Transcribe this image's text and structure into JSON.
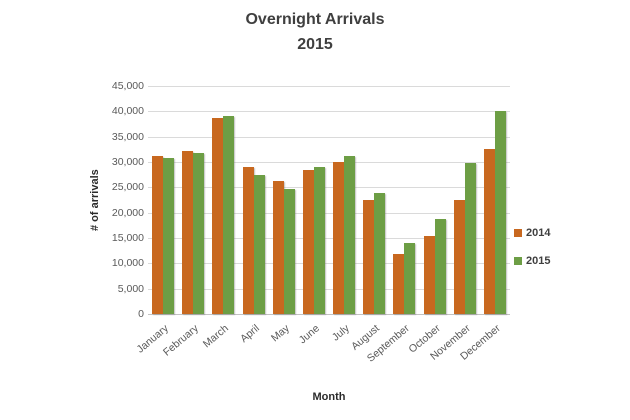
{
  "chart_data": {
    "type": "bar",
    "title": "Overnight Arrivals",
    "subtitle": "2015",
    "xlabel": "Month",
    "ylabel": "# of arrivals",
    "categories": [
      "January",
      "February",
      "March",
      "April",
      "May",
      "June",
      "July",
      "August",
      "September",
      "October",
      "November",
      "December"
    ],
    "series": [
      {
        "name": "2014",
        "color": "#C8681F",
        "values": [
          31200,
          32200,
          38600,
          29000,
          26200,
          28500,
          30100,
          22500,
          11900,
          15400,
          22600,
          32600
        ]
      },
      {
        "name": "2015",
        "color": "#6D9E45",
        "values": [
          30800,
          31700,
          39100,
          27500,
          24700,
          29100,
          31100,
          23800,
          14000,
          18700,
          29900,
          40000
        ]
      }
    ],
    "ylim": [
      0,
      45000
    ],
    "ytick_step": 5000,
    "ytick_labels": [
      "0",
      "5,000",
      "10,000",
      "15,000",
      "20,000",
      "25,000",
      "30,000",
      "35,000",
      "40,000",
      "45,000"
    ],
    "grid": true,
    "legend_position": "right",
    "colors": {
      "gridline": "#DADADA",
      "axis_line": "#C3C3C3",
      "tick_text": "#595959",
      "title_text": "#3F3F3F"
    }
  }
}
